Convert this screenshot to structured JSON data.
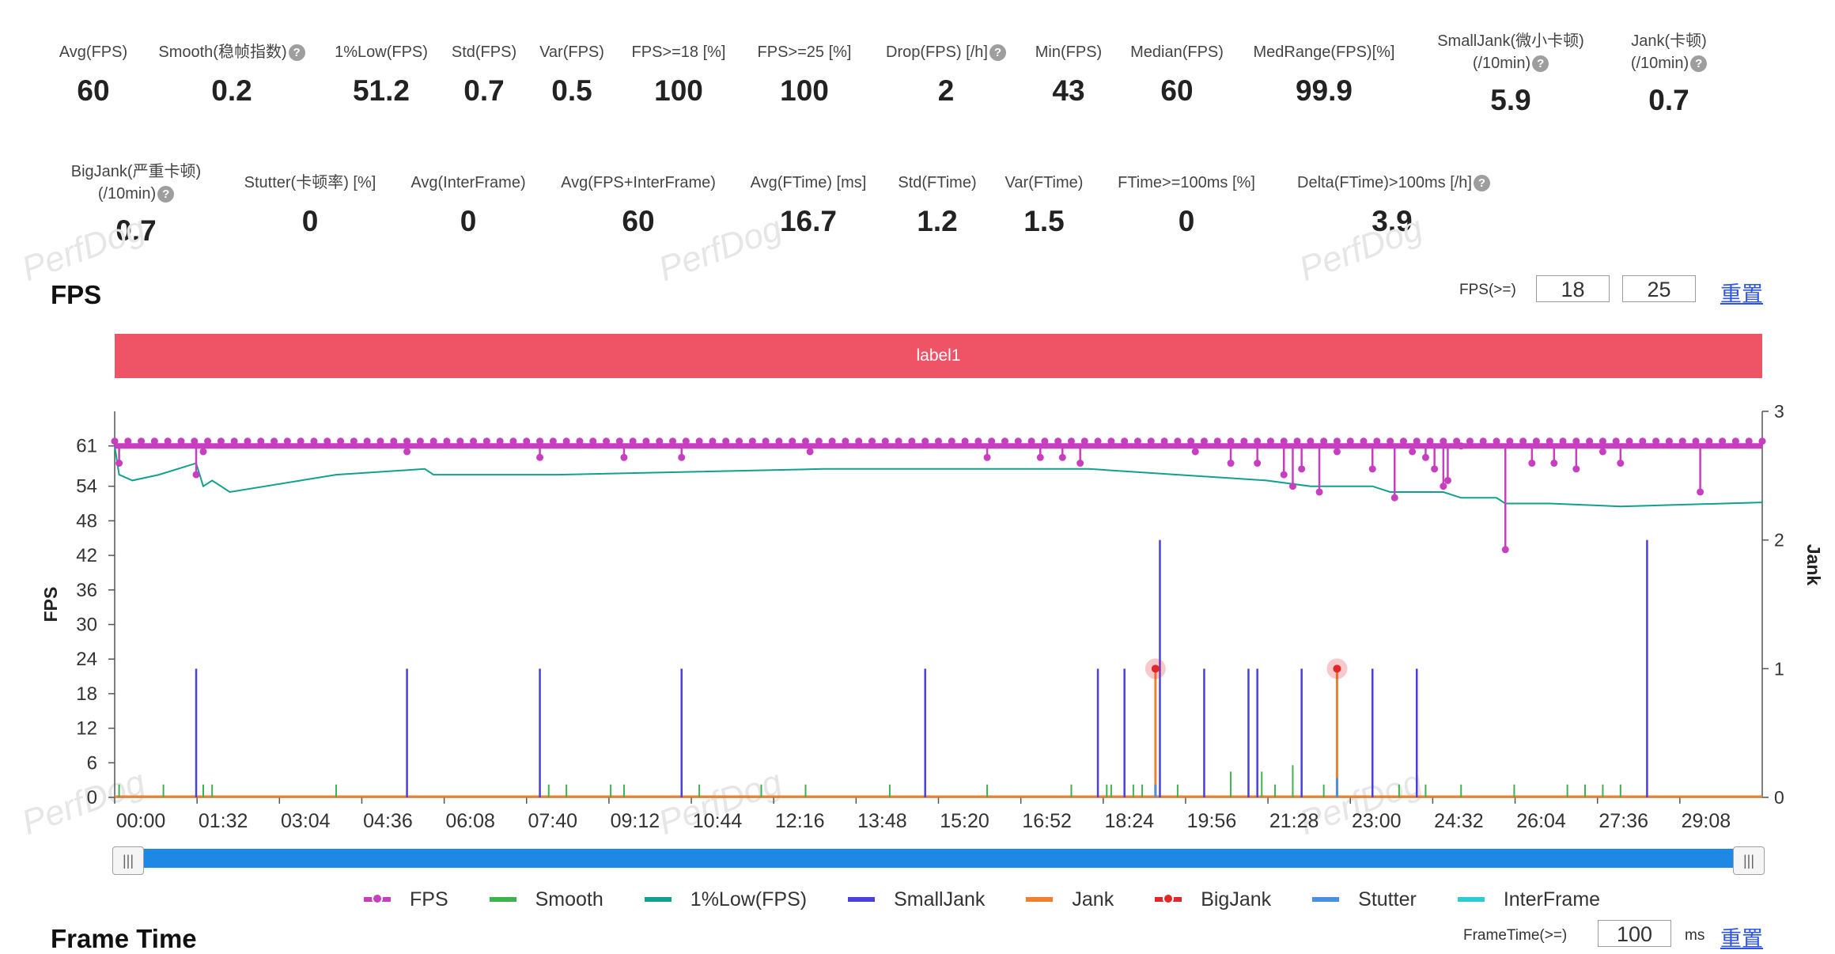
{
  "stats_row1": [
    {
      "label": "Avg(FPS)",
      "value": "60",
      "help": false
    },
    {
      "label": "Smooth(稳帧指数)",
      "value": "0.2",
      "help": true
    },
    {
      "label": "1%Low(FPS)",
      "value": "51.2",
      "help": false
    },
    {
      "label": "Std(FPS)",
      "value": "0.7",
      "help": false
    },
    {
      "label": "Var(FPS)",
      "value": "0.5",
      "help": false
    },
    {
      "label": "FPS>=18 [%]",
      "value": "100",
      "help": false
    },
    {
      "label": "FPS>=25 [%]",
      "value": "100",
      "help": false
    },
    {
      "label": "Drop(FPS) [/h]",
      "value": "2",
      "help": true
    },
    {
      "label": "Min(FPS)",
      "value": "43",
      "help": false
    },
    {
      "label": "Median(FPS)",
      "value": "60",
      "help": false
    },
    {
      "label": "MedRange(FPS)[%]",
      "value": "99.9",
      "help": false
    },
    {
      "label": "SmallJank(微小卡顿)",
      "label2": "(/10min)",
      "value": "5.9",
      "help": true
    },
    {
      "label": "Jank(卡顿)",
      "label2": "(/10min)",
      "value": "0.7",
      "help": true
    }
  ],
  "stats_row2": [
    {
      "label": "BigJank(严重卡顿)",
      "label2": "(/10min)",
      "value": "0.7",
      "help": true
    },
    {
      "label": "Stutter(卡顿率) [%]",
      "value": "0",
      "help": false
    },
    {
      "label": "Avg(InterFrame)",
      "value": "0",
      "help": false
    },
    {
      "label": "Avg(FPS+InterFrame)",
      "value": "60",
      "help": false
    },
    {
      "label": "Avg(FTime) [ms]",
      "value": "16.7",
      "help": false
    },
    {
      "label": "Std(FTime)",
      "value": "1.2",
      "help": false
    },
    {
      "label": "Var(FTime)",
      "value": "1.5",
      "help": false
    },
    {
      "label": "FTime>=100ms [%]",
      "value": "0",
      "help": false
    },
    {
      "label": "Delta(FTime)>100ms [/h]",
      "value": "3.9",
      "help": true
    }
  ],
  "watermark_text": "PerfDog",
  "help_glyph": "?",
  "fps_section": {
    "title": "FPS",
    "threshold_label": "FPS(>=)",
    "threshold1": "18",
    "threshold2": "25",
    "reset_label": "重置",
    "label_bar": "label1"
  },
  "frametime_section": {
    "title": "Frame Time",
    "threshold_label": "FrameTime(>=)",
    "threshold": "100",
    "unit": "ms",
    "reset_label": "重置"
  },
  "slider": {
    "handle_glyph": "|||"
  },
  "legend": [
    {
      "name": "FPS",
      "color": "#c83ec0",
      "dot": true
    },
    {
      "name": "Smooth",
      "color": "#3cb44b",
      "dot": false
    },
    {
      "name": "1%Low(FPS)",
      "color": "#12a08f",
      "dot": false
    },
    {
      "name": "SmallJank",
      "color": "#4a3fe0",
      "dot": false
    },
    {
      "name": "Jank",
      "color": "#f08030",
      "dot": false
    },
    {
      "name": "BigJank",
      "color": "#e0282a",
      "dot": true
    },
    {
      "name": "Stutter",
      "color": "#4a90e2",
      "dot": false
    },
    {
      "name": "InterFrame",
      "color": "#2ccbd6",
      "dot": false
    }
  ],
  "chart_data": {
    "type": "line",
    "ylabel": "FPS",
    "y2label": "Jank",
    "y_ticks": [
      0,
      6,
      12,
      18,
      24,
      30,
      36,
      42,
      48,
      54,
      61
    ],
    "y2_ticks": [
      0,
      1,
      2,
      3
    ],
    "y_range": [
      0,
      67
    ],
    "y2_range": [
      0,
      3
    ],
    "x_tick_labels": [
      "00:00",
      "01:32",
      "03:04",
      "04:36",
      "06:08",
      "07:40",
      "09:12",
      "10:44",
      "12:16",
      "13:48",
      "15:20",
      "16:52",
      "18:24",
      "19:56",
      "21:28",
      "23:00",
      "24:32",
      "26:04",
      "27:36",
      "29:08"
    ],
    "x_range_seconds": [
      0,
      1860
    ],
    "series": [
      {
        "name": "FPS",
        "baseline": 61,
        "drops": [
          [
            5,
            58
          ],
          [
            92,
            56
          ],
          [
            100,
            60
          ],
          [
            330,
            60
          ],
          [
            480,
            59
          ],
          [
            575,
            59
          ],
          [
            640,
            59
          ],
          [
            785,
            60
          ],
          [
            985,
            59
          ],
          [
            1045,
            59
          ],
          [
            1070,
            59
          ],
          [
            1090,
            58
          ],
          [
            1220,
            60
          ],
          [
            1260,
            58
          ],
          [
            1290,
            58
          ],
          [
            1320,
            56
          ],
          [
            1330,
            54
          ],
          [
            1340,
            57
          ],
          [
            1360,
            53
          ],
          [
            1380,
            60
          ],
          [
            1420,
            57
          ],
          [
            1445,
            52
          ],
          [
            1465,
            60
          ],
          [
            1480,
            59
          ],
          [
            1490,
            57
          ],
          [
            1500,
            54
          ],
          [
            1505,
            55
          ],
          [
            1520,
            61
          ],
          [
            1570,
            43
          ],
          [
            1600,
            58
          ],
          [
            1625,
            58
          ],
          [
            1650,
            57
          ],
          [
            1680,
            60
          ],
          [
            1700,
            58
          ],
          [
            1790,
            53
          ]
        ]
      },
      {
        "name": "1%Low(FPS)",
        "points": [
          [
            0,
            61
          ],
          [
            5,
            56
          ],
          [
            20,
            55
          ],
          [
            50,
            56
          ],
          [
            92,
            58
          ],
          [
            100,
            54
          ],
          [
            110,
            55
          ],
          [
            130,
            53
          ],
          [
            250,
            56
          ],
          [
            350,
            57
          ],
          [
            360,
            56
          ],
          [
            500,
            56
          ],
          [
            800,
            57
          ],
          [
            1100,
            57
          ],
          [
            1200,
            56
          ],
          [
            1300,
            55
          ],
          [
            1350,
            54
          ],
          [
            1420,
            54
          ],
          [
            1440,
            53
          ],
          [
            1500,
            53
          ],
          [
            1520,
            52
          ],
          [
            1560,
            52
          ],
          [
            1570,
            51
          ],
          [
            1620,
            51
          ],
          [
            1700,
            50.5
          ],
          [
            1860,
            51.2
          ]
        ]
      },
      {
        "name": "SmallJank",
        "spikes": [
          [
            92,
            1
          ],
          [
            330,
            1
          ],
          [
            480,
            1
          ],
          [
            640,
            1
          ],
          [
            915,
            1
          ],
          [
            1110,
            1
          ],
          [
            1140,
            1
          ],
          [
            1180,
            2
          ],
          [
            1230,
            1
          ],
          [
            1280,
            1
          ],
          [
            1290,
            1
          ],
          [
            1340,
            1
          ],
          [
            1380,
            1
          ],
          [
            1420,
            1
          ],
          [
            1470,
            1
          ],
          [
            1730,
            2
          ]
        ]
      },
      {
        "name": "Jank",
        "spikes": [
          [
            1175,
            1
          ],
          [
            1380,
            1
          ]
        ]
      },
      {
        "name": "BigJank",
        "points": [
          [
            1175,
            1
          ],
          [
            1380,
            1
          ]
        ]
      },
      {
        "name": "Smooth",
        "spikes": [
          [
            5,
            0.1
          ],
          [
            55,
            0.1
          ],
          [
            100,
            0.1
          ],
          [
            110,
            0.1
          ],
          [
            250,
            0.1
          ],
          [
            480,
            0.1
          ],
          [
            490,
            0.1
          ],
          [
            510,
            0.1
          ],
          [
            560,
            0.1
          ],
          [
            575,
            0.1
          ],
          [
            640,
            0.1
          ],
          [
            660,
            0.1
          ],
          [
            730,
            0.1
          ],
          [
            780,
            0.1
          ],
          [
            875,
            0.1
          ],
          [
            985,
            0.1
          ],
          [
            1080,
            0.1
          ],
          [
            1120,
            0.1
          ],
          [
            1125,
            0.1
          ],
          [
            1150,
            0.1
          ],
          [
            1160,
            0.1
          ],
          [
            1200,
            0.1
          ],
          [
            1260,
            0.2
          ],
          [
            1280,
            0.1
          ],
          [
            1295,
            0.2
          ],
          [
            1310,
            0.1
          ],
          [
            1330,
            0.25
          ],
          [
            1340,
            0.1
          ],
          [
            1365,
            0.1
          ],
          [
            1380,
            0.15
          ],
          [
            1420,
            0.1
          ],
          [
            1450,
            0.1
          ],
          [
            1480,
            0.1
          ],
          [
            1520,
            0.1
          ],
          [
            1580,
            0.1
          ],
          [
            1640,
            0.1
          ],
          [
            1660,
            0.1
          ],
          [
            1680,
            0.1
          ],
          [
            1700,
            0.1
          ]
        ]
      },
      {
        "name": "Stutter",
        "spikes": [
          [
            1175,
            0.1
          ],
          [
            1380,
            0.15
          ]
        ]
      }
    ]
  }
}
